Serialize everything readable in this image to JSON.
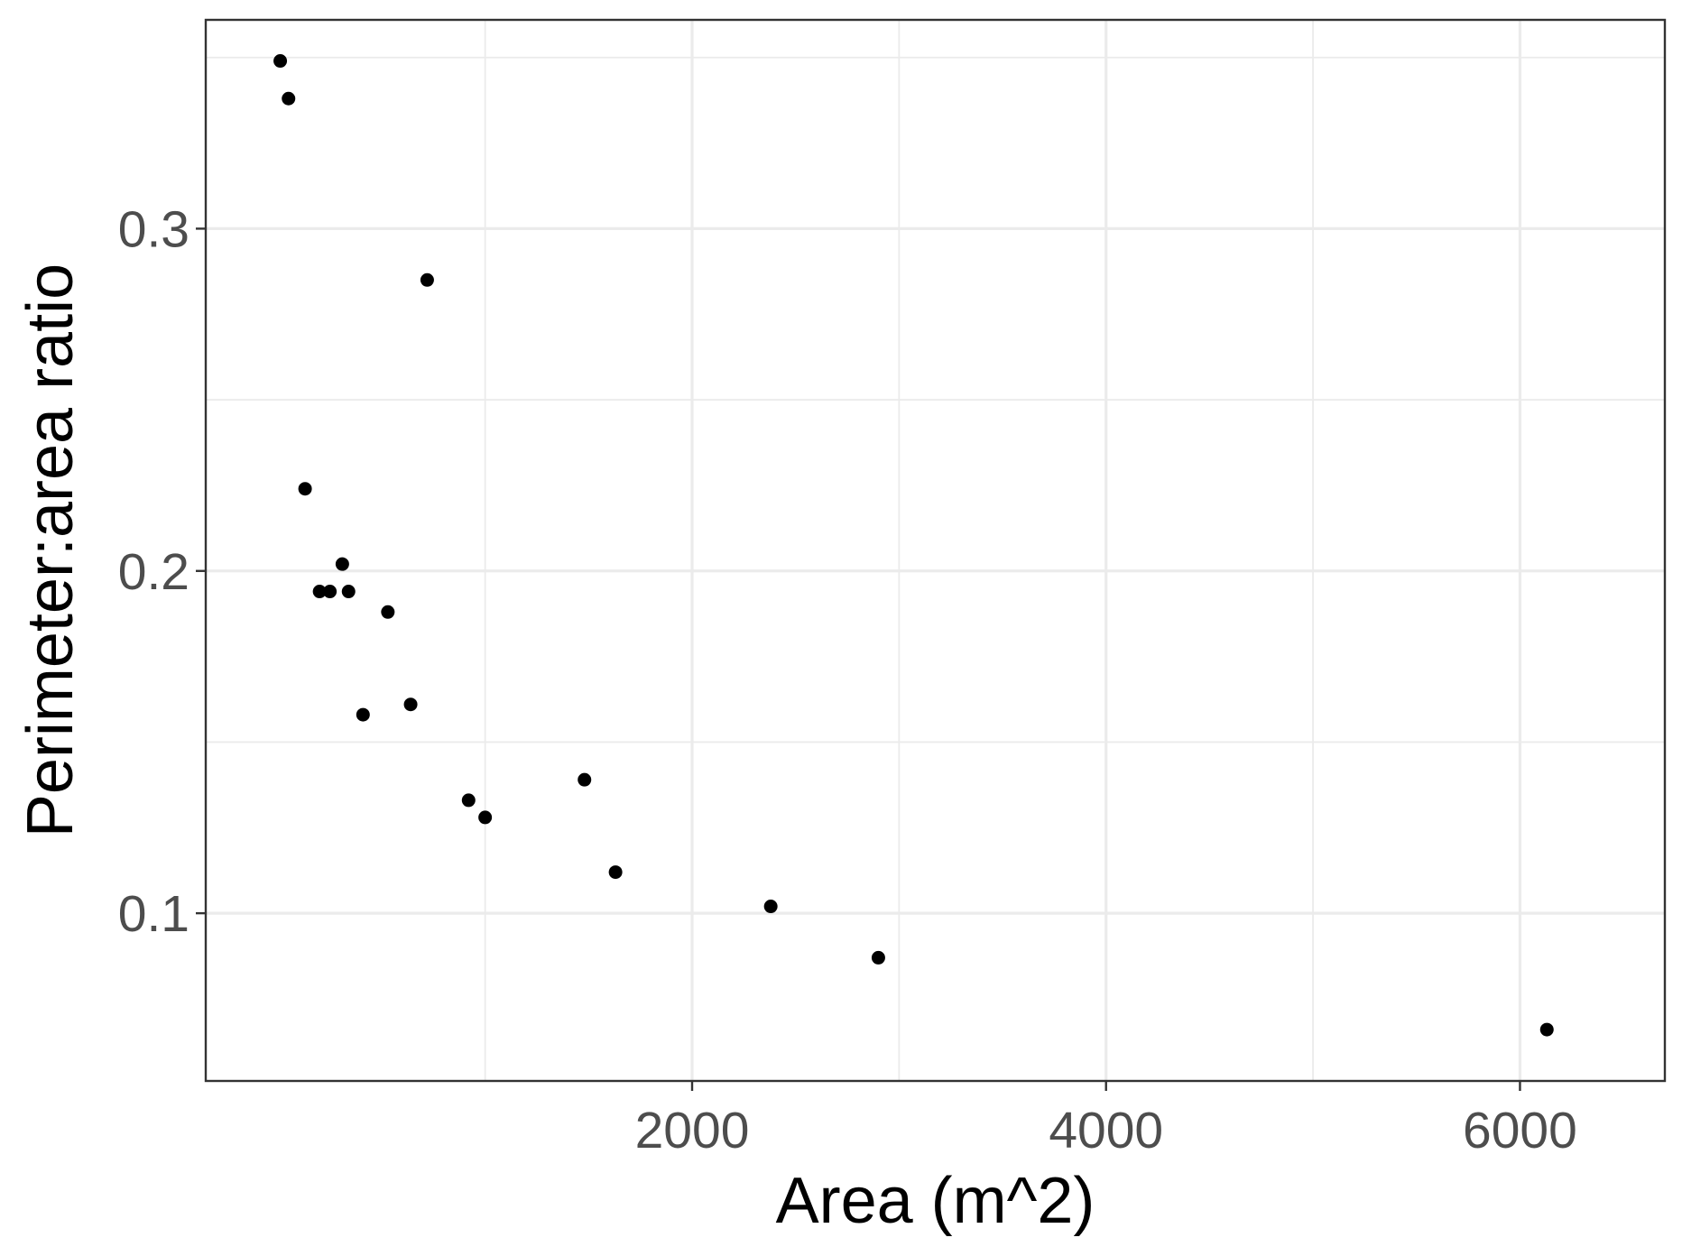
{
  "chart_data": {
    "type": "scatter",
    "title": "",
    "xlabel": "Area (m^2)",
    "ylabel": "Perimeter:area ratio",
    "xlim": [
      -350,
      6700
    ],
    "ylim": [
      0.051,
      0.361
    ],
    "x_ticks": [
      2000,
      4000,
      6000
    ],
    "x_tick_labels": [
      "2000",
      "4000",
      "6000"
    ],
    "x_minor": [
      1000,
      3000,
      5000
    ],
    "y_ticks": [
      0.1,
      0.2,
      0.3
    ],
    "y_tick_labels": [
      "0.1",
      "0.2",
      "0.3"
    ],
    "y_minor": [
      0.15,
      0.25,
      0.35
    ],
    "grid": true,
    "legend": "none",
    "series": [
      {
        "color": "#000000",
        "points": [
          {
            "x": 10,
            "y": 0.349
          },
          {
            "x": 50,
            "y": 0.338
          },
          {
            "x": 130,
            "y": 0.224
          },
          {
            "x": 200,
            "y": 0.194
          },
          {
            "x": 250,
            "y": 0.194
          },
          {
            "x": 310,
            "y": 0.202
          },
          {
            "x": 340,
            "y": 0.194
          },
          {
            "x": 410,
            "y": 0.158
          },
          {
            "x": 530,
            "y": 0.188
          },
          {
            "x": 640,
            "y": 0.161
          },
          {
            "x": 720,
            "y": 0.285
          },
          {
            "x": 920,
            "y": 0.133
          },
          {
            "x": 1000,
            "y": 0.128
          },
          {
            "x": 1480,
            "y": 0.139
          },
          {
            "x": 1630,
            "y": 0.112
          },
          {
            "x": 2380,
            "y": 0.102
          },
          {
            "x": 2900,
            "y": 0.087
          },
          {
            "x": 6130,
            "y": 0.066
          }
        ]
      }
    ]
  }
}
